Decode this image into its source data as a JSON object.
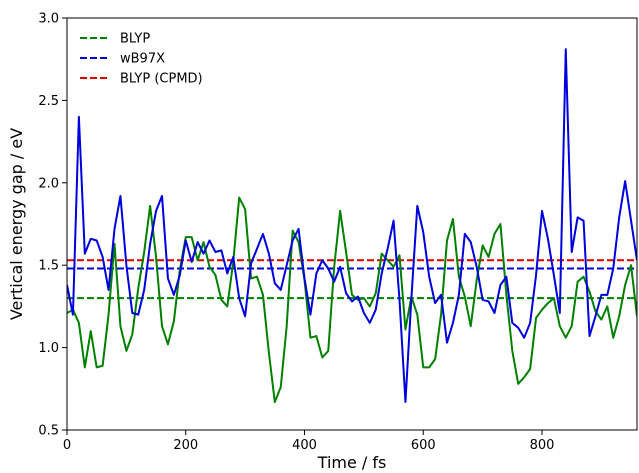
{
  "chart_data": {
    "type": "line",
    "title": "",
    "xlabel": "Time / fs",
    "ylabel": "Vertical energy gap / eV",
    "xlim": [
      0,
      960
    ],
    "ylim": [
      0.5,
      3.0
    ],
    "xticks": [
      0,
      200,
      400,
      600,
      800
    ],
    "yticks": [
      0.5,
      1.0,
      1.5,
      2.0,
      2.5,
      3.0
    ],
    "ytick_labels": [
      "0.5",
      "1.0",
      "1.5",
      "2.0",
      "2.5",
      "3.0"
    ],
    "grid": false,
    "legend_position": "top-left",
    "series": [
      {
        "name": "BLYP",
        "color": "#008000",
        "style": "solid",
        "x": [
          0,
          10,
          20,
          30,
          40,
          50,
          60,
          70,
          80,
          90,
          100,
          110,
          120,
          130,
          140,
          150,
          160,
          170,
          180,
          190,
          200,
          210,
          220,
          230,
          240,
          250,
          260,
          270,
          280,
          290,
          300,
          310,
          320,
          330,
          340,
          350,
          360,
          370,
          380,
          390,
          400,
          410,
          420,
          430,
          440,
          450,
          460,
          470,
          480,
          490,
          500,
          510,
          520,
          530,
          540,
          550,
          560,
          570,
          580,
          590,
          600,
          610,
          620,
          630,
          640,
          650,
          660,
          670,
          680,
          690,
          700,
          710,
          720,
          730,
          740,
          750,
          760,
          770,
          780,
          790,
          800,
          810,
          820,
          830,
          840,
          850,
          860,
          870,
          880,
          890,
          900,
          910,
          920,
          930,
          940,
          950,
          960
        ],
        "values": [
          1.21,
          1.23,
          1.15,
          0.88,
          1.1,
          0.88,
          0.89,
          1.2,
          1.63,
          1.13,
          0.98,
          1.08,
          1.36,
          1.58,
          1.86,
          1.55,
          1.13,
          1.02,
          1.16,
          1.47,
          1.67,
          1.67,
          1.53,
          1.64,
          1.49,
          1.44,
          1.29,
          1.25,
          1.52,
          1.91,
          1.84,
          1.42,
          1.43,
          1.32,
          0.97,
          0.67,
          0.76,
          1.13,
          1.71,
          1.64,
          1.41,
          1.06,
          1.07,
          0.94,
          0.98,
          1.49,
          1.83,
          1.58,
          1.32,
          1.29,
          1.3,
          1.25,
          1.33,
          1.57,
          1.53,
          1.49,
          1.56,
          1.11,
          1.31,
          1.2,
          0.88,
          0.88,
          0.93,
          1.2,
          1.65,
          1.78,
          1.43,
          1.31,
          1.13,
          1.41,
          1.62,
          1.55,
          1.69,
          1.75,
          1.32,
          0.98,
          0.78,
          0.82,
          0.87,
          1.18,
          1.23,
          1.27,
          1.3,
          1.13,
          1.06,
          1.13,
          1.4,
          1.43,
          1.34,
          1.22,
          1.17,
          1.25,
          1.06,
          1.19,
          1.38,
          1.5,
          1.19
        ]
      },
      {
        "name": "wB97X",
        "color": "#0000dd",
        "style": "solid",
        "x": [
          0,
          10,
          20,
          30,
          40,
          50,
          60,
          70,
          80,
          90,
          100,
          110,
          120,
          130,
          140,
          150,
          160,
          170,
          180,
          190,
          200,
          210,
          220,
          230,
          240,
          250,
          260,
          270,
          280,
          290,
          300,
          310,
          320,
          330,
          340,
          350,
          360,
          370,
          380,
          390,
          400,
          410,
          420,
          430,
          440,
          450,
          460,
          470,
          480,
          490,
          500,
          510,
          520,
          530,
          540,
          550,
          560,
          570,
          580,
          590,
          600,
          610,
          620,
          630,
          640,
          650,
          660,
          670,
          680,
          690,
          700,
          710,
          720,
          730,
          740,
          750,
          760,
          770,
          780,
          790,
          800,
          810,
          820,
          830,
          840,
          850,
          860,
          870,
          880,
          890,
          900,
          910,
          920,
          930,
          940,
          950,
          960
        ],
        "values": [
          1.38,
          1.2,
          2.4,
          1.57,
          1.66,
          1.65,
          1.55,
          1.35,
          1.72,
          1.92,
          1.5,
          1.21,
          1.2,
          1.35,
          1.63,
          1.83,
          1.92,
          1.42,
          1.32,
          1.44,
          1.65,
          1.52,
          1.64,
          1.57,
          1.65,
          1.58,
          1.59,
          1.45,
          1.55,
          1.3,
          1.19,
          1.51,
          1.6,
          1.69,
          1.57,
          1.39,
          1.35,
          1.5,
          1.65,
          1.72,
          1.42,
          1.2,
          1.45,
          1.53,
          1.48,
          1.4,
          1.49,
          1.33,
          1.28,
          1.31,
          1.21,
          1.15,
          1.23,
          1.45,
          1.6,
          1.77,
          1.29,
          0.67,
          1.3,
          1.86,
          1.7,
          1.43,
          1.27,
          1.32,
          1.03,
          1.15,
          1.32,
          1.69,
          1.64,
          1.49,
          1.29,
          1.28,
          1.21,
          1.38,
          1.43,
          1.15,
          1.12,
          1.06,
          1.15,
          1.44,
          1.83,
          1.66,
          1.44,
          1.21,
          2.81,
          1.58,
          1.79,
          1.77,
          1.07,
          1.19,
          1.32,
          1.32,
          1.48,
          1.79,
          2.01,
          1.77,
          1.53
        ]
      },
      {
        "name": "BLYP",
        "color": "#008000",
        "style": "dashed",
        "constant": 1.3,
        "legend": true
      },
      {
        "name": "wB97X",
        "color": "#0000dd",
        "style": "dashed",
        "constant": 1.48,
        "legend": true
      },
      {
        "name": "BLYP (CPMD)",
        "color": "#dd0000",
        "style": "dashed",
        "constant": 1.53,
        "legend": true
      }
    ]
  }
}
